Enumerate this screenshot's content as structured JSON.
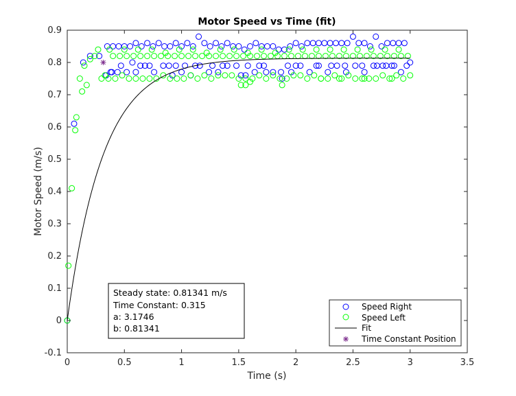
{
  "chart_data": {
    "type": "scatter",
    "title": "Motor Speed vs Time (fit)",
    "xlabel": "Time (s)",
    "ylabel": "Motor Speed (m/s)",
    "xlim": [
      0,
      3.5
    ],
    "ylim": [
      -0.1,
      0.9
    ],
    "xticks": [
      "0",
      "0.5",
      "1",
      "1.5",
      "2",
      "2.5",
      "3",
      "3.5"
    ],
    "yticks": [
      "-0.1",
      "0",
      "0.1",
      "0.2",
      "0.3",
      "0.4",
      "0.5",
      "0.6",
      "0.7",
      "0.8",
      "0.9"
    ],
    "grid": false,
    "legend_position": "bottom-right",
    "series": [
      {
        "name": "Speed Right",
        "kind": "markers",
        "marker": "circle",
        "color": "#0000ff",
        "x": [
          0.0,
          0.06,
          0.14,
          0.2,
          0.28,
          0.34,
          0.38,
          0.44,
          0.52,
          0.6,
          0.68,
          0.76,
          0.84,
          0.92,
          1.0,
          1.08,
          1.16,
          1.24,
          1.32,
          1.4,
          1.48,
          1.56,
          1.64,
          1.72,
          1.8,
          1.88,
          1.96,
          2.04,
          2.12,
          2.2,
          2.28,
          2.36,
          2.44,
          2.52,
          2.6,
          2.68,
          2.76,
          2.84,
          2.92,
          3.0,
          0.35,
          0.4,
          0.45,
          0.5,
          0.55,
          0.6,
          0.65,
          0.7,
          0.75,
          0.8,
          0.85,
          0.9,
          0.95,
          1.0,
          1.05,
          1.1,
          1.15,
          1.2,
          1.25,
          1.3,
          1.35,
          1.4,
          1.45,
          1.5,
          1.55,
          1.6,
          1.65,
          1.7,
          1.75,
          1.8,
          1.85,
          1.9,
          1.95,
          2.0,
          2.05,
          2.1,
          2.15,
          2.2,
          2.25,
          2.3,
          2.35,
          2.4,
          2.45,
          2.5,
          2.55,
          2.6,
          2.65,
          2.7,
          2.75,
          2.8,
          2.85,
          2.9,
          2.95,
          0.39,
          0.47,
          0.57,
          0.64,
          0.72,
          0.89,
          0.95,
          1.03,
          1.12,
          1.27,
          1.36,
          1.52,
          1.58,
          1.68,
          1.74,
          1.87,
          1.93,
          2.0,
          2.18,
          2.31,
          2.43,
          2.58,
          2.71,
          2.79,
          2.86,
          2.97
        ],
        "y": [
          0.0,
          0.61,
          0.8,
          0.82,
          0.82,
          0.76,
          0.77,
          0.77,
          0.77,
          0.77,
          0.79,
          0.77,
          0.79,
          0.76,
          0.77,
          0.76,
          0.79,
          0.77,
          0.77,
          0.79,
          0.79,
          0.76,
          0.77,
          0.79,
          0.77,
          0.75,
          0.77,
          0.79,
          0.77,
          0.79,
          0.77,
          0.79,
          0.77,
          0.79,
          0.77,
          0.79,
          0.79,
          0.79,
          0.77,
          0.8,
          0.85,
          0.85,
          0.85,
          0.85,
          0.85,
          0.86,
          0.85,
          0.86,
          0.85,
          0.86,
          0.85,
          0.85,
          0.86,
          0.85,
          0.86,
          0.85,
          0.88,
          0.86,
          0.85,
          0.86,
          0.85,
          0.86,
          0.85,
          0.85,
          0.84,
          0.85,
          0.86,
          0.85,
          0.85,
          0.85,
          0.84,
          0.84,
          0.85,
          0.86,
          0.85,
          0.86,
          0.86,
          0.86,
          0.86,
          0.86,
          0.86,
          0.86,
          0.86,
          0.88,
          0.86,
          0.86,
          0.85,
          0.88,
          0.85,
          0.86,
          0.86,
          0.86,
          0.86,
          0.77,
          0.79,
          0.8,
          0.79,
          0.79,
          0.79,
          0.79,
          0.79,
          0.79,
          0.79,
          0.79,
          0.76,
          0.79,
          0.79,
          0.77,
          0.77,
          0.79,
          0.79,
          0.79,
          0.79,
          0.79,
          0.79,
          0.79,
          0.79,
          0.79,
          0.79
        ]
      },
      {
        "name": "Speed Left",
        "kind": "markers",
        "marker": "circle",
        "color": "#00ff00",
        "x": [
          0.0,
          0.01,
          0.04,
          0.07,
          0.08,
          0.11,
          0.13,
          0.15,
          0.17,
          0.2,
          0.24,
          0.27,
          0.3,
          0.33,
          0.36,
          0.42,
          0.48,
          0.54,
          0.6,
          0.66,
          0.72,
          0.78,
          0.84,
          0.9,
          0.96,
          1.02,
          1.08,
          1.14,
          1.2,
          1.26,
          1.32,
          1.38,
          1.44,
          1.5,
          1.56,
          1.62,
          1.68,
          1.74,
          1.8,
          1.86,
          1.92,
          1.98,
          2.04,
          2.1,
          2.16,
          2.22,
          2.28,
          2.34,
          2.4,
          2.46,
          2.52,
          2.58,
          2.64,
          2.7,
          2.76,
          2.82,
          2.88,
          2.94,
          3.0,
          0.4,
          0.46,
          0.52,
          0.58,
          0.64,
          0.7,
          0.76,
          0.82,
          0.88,
          0.94,
          1.0,
          1.06,
          1.12,
          1.18,
          1.24,
          1.3,
          1.36,
          1.42,
          1.48,
          1.54,
          1.6,
          1.66,
          1.72,
          1.78,
          1.84,
          1.9,
          1.96,
          2.02,
          2.08,
          2.14,
          2.2,
          2.26,
          2.32,
          2.38,
          2.44,
          2.5,
          2.56,
          2.62,
          2.68,
          2.74,
          2.8,
          2.86,
          2.92,
          2.98,
          0.37,
          0.5,
          0.62,
          0.74,
          0.86,
          0.98,
          1.1,
          1.22,
          1.34,
          1.46,
          1.58,
          1.7,
          1.82,
          1.94,
          2.06,
          2.18,
          2.3,
          2.42,
          2.54,
          2.66,
          2.78,
          2.9,
          1.52,
          1.56,
          1.6,
          1.88,
          2.22,
          2.38,
          2.6,
          2.84
        ],
        "y": [
          0.0,
          0.17,
          0.41,
          0.59,
          0.63,
          0.75,
          0.71,
          0.79,
          0.73,
          0.81,
          0.82,
          0.84,
          0.75,
          0.76,
          0.75,
          0.75,
          0.76,
          0.75,
          0.75,
          0.75,
          0.75,
          0.75,
          0.76,
          0.75,
          0.75,
          0.75,
          0.76,
          0.75,
          0.76,
          0.75,
          0.76,
          0.76,
          0.76,
          0.75,
          0.75,
          0.75,
          0.76,
          0.75,
          0.76,
          0.75,
          0.75,
          0.76,
          0.76,
          0.75,
          0.76,
          0.75,
          0.75,
          0.76,
          0.75,
          0.76,
          0.75,
          0.75,
          0.75,
          0.75,
          0.76,
          0.75,
          0.76,
          0.75,
          0.76,
          0.82,
          0.82,
          0.82,
          0.82,
          0.82,
          0.82,
          0.82,
          0.82,
          0.82,
          0.82,
          0.82,
          0.82,
          0.82,
          0.82,
          0.82,
          0.82,
          0.82,
          0.82,
          0.82,
          0.82,
          0.82,
          0.82,
          0.82,
          0.82,
          0.82,
          0.82,
          0.82,
          0.82,
          0.82,
          0.82,
          0.82,
          0.82,
          0.82,
          0.82,
          0.82,
          0.82,
          0.82,
          0.82,
          0.82,
          0.82,
          0.82,
          0.82,
          0.82,
          0.82,
          0.84,
          0.84,
          0.84,
          0.84,
          0.83,
          0.84,
          0.84,
          0.83,
          0.84,
          0.84,
          0.83,
          0.84,
          0.83,
          0.84,
          0.84,
          0.84,
          0.84,
          0.84,
          0.84,
          0.84,
          0.84,
          0.84,
          0.73,
          0.73,
          0.74,
          0.73,
          0.75,
          0.75,
          0.75,
          0.75
        ]
      },
      {
        "name": "Fit",
        "kind": "line",
        "color": "#000000",
        "model": "y = b * (1 - exp(-a * t))",
        "a": 3.1746,
        "b": 0.81341,
        "x_range": [
          0,
          3.0
        ]
      },
      {
        "name": "Time Constant Position",
        "kind": "markers",
        "marker": "asterisk",
        "color": "#7e2f8e",
        "x": [
          0.315
        ],
        "y": [
          0.8
        ]
      }
    ],
    "annotation": {
      "lines": [
        "Steady state: 0.81341 m/s",
        "Time Constant: 0.315",
        "a: 3.1746",
        "b: 0.81341"
      ]
    }
  }
}
